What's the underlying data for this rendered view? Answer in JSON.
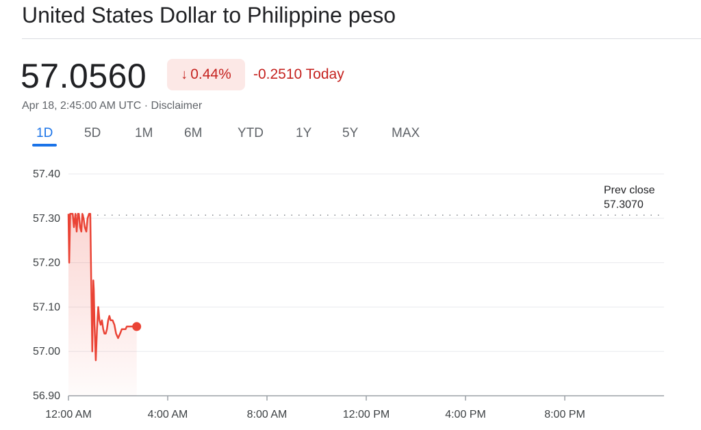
{
  "header": {
    "title": "United States Dollar to Philippine peso",
    "price": "57.0560",
    "badge_arrow": "↓",
    "badge_pct": "0.44%",
    "change_today": "-0.2510 Today",
    "timestamp": "Apr 18, 2:45:00 AM UTC",
    "separator": " · ",
    "disclaimer": "Disclaimer"
  },
  "tabs": [
    {
      "label": "1D",
      "active": true
    },
    {
      "label": "5D",
      "active": false
    },
    {
      "label": "1M",
      "active": false
    },
    {
      "label": "6M",
      "active": false
    },
    {
      "label": "YTD",
      "active": false
    },
    {
      "label": "1Y",
      "active": false
    },
    {
      "label": "5Y",
      "active": false
    },
    {
      "label": "MAX",
      "active": false
    }
  ],
  "colors": {
    "line": "#ea4335",
    "down": "#c5221f",
    "accent": "#1a73e8",
    "grid": "#e8eaed"
  },
  "chart_data": {
    "type": "line",
    "xlabel": "",
    "ylabel": "",
    "x_unit": "hours since 12:00 AM",
    "xlim": [
      0,
      24
    ],
    "ylim": [
      56.9,
      57.4
    ],
    "y_ticks": [
      {
        "value": 57.4,
        "label": "57.40"
      },
      {
        "value": 57.3,
        "label": "57.30"
      },
      {
        "value": 57.2,
        "label": "57.20"
      },
      {
        "value": 57.1,
        "label": "57.10"
      },
      {
        "value": 57.0,
        "label": "57.00"
      },
      {
        "value": 56.9,
        "label": "56.90"
      }
    ],
    "x_ticks": [
      {
        "value": 0,
        "label": "12:00 AM"
      },
      {
        "value": 4,
        "label": "4:00 AM"
      },
      {
        "value": 8,
        "label": "8:00 AM"
      },
      {
        "value": 12,
        "label": "12:00 PM"
      },
      {
        "value": 16,
        "label": "4:00 PM"
      },
      {
        "value": 20,
        "label": "8:00 PM"
      }
    ],
    "prev_close": {
      "value": 57.307,
      "label_top": "Prev close",
      "label_value": "57.3070"
    },
    "series": [
      {
        "x": [
          0,
          0.03,
          0.07,
          0.12,
          0.17,
          0.22,
          0.28,
          0.33,
          0.38,
          0.42,
          0.47,
          0.52,
          0.56,
          0.61,
          0.66,
          0.72,
          0.77,
          0.83,
          0.88,
          0.92,
          0.96,
          1.0,
          1.02,
          1.05,
          1.1,
          1.15,
          1.2,
          1.25,
          1.3,
          1.35,
          1.4,
          1.45,
          1.5,
          1.55,
          1.6,
          1.65,
          1.7,
          1.78,
          1.85,
          1.92,
          2.0,
          2.08,
          2.15,
          2.2,
          2.25,
          2.3,
          2.35,
          2.4,
          2.47,
          2.55,
          2.62,
          2.7,
          2.75
        ],
        "y": [
          57.31,
          57.2,
          57.31,
          57.31,
          57.31,
          57.28,
          57.31,
          57.27,
          57.31,
          57.31,
          57.28,
          57.27,
          57.31,
          57.3,
          57.28,
          57.27,
          57.3,
          57.31,
          57.31,
          57.15,
          57.0,
          57.16,
          57.14,
          57.06,
          56.98,
          57.05,
          57.1,
          57.07,
          57.06,
          57.07,
          57.05,
          57.04,
          57.04,
          57.05,
          57.07,
          57.08,
          57.07,
          57.07,
          57.06,
          57.04,
          57.03,
          57.04,
          57.05,
          57.05,
          57.05,
          57.05,
          57.056,
          57.056,
          57.056,
          57.056,
          57.056,
          57.056,
          57.056
        ]
      }
    ],
    "grid": true,
    "last_point_marker": true
  }
}
